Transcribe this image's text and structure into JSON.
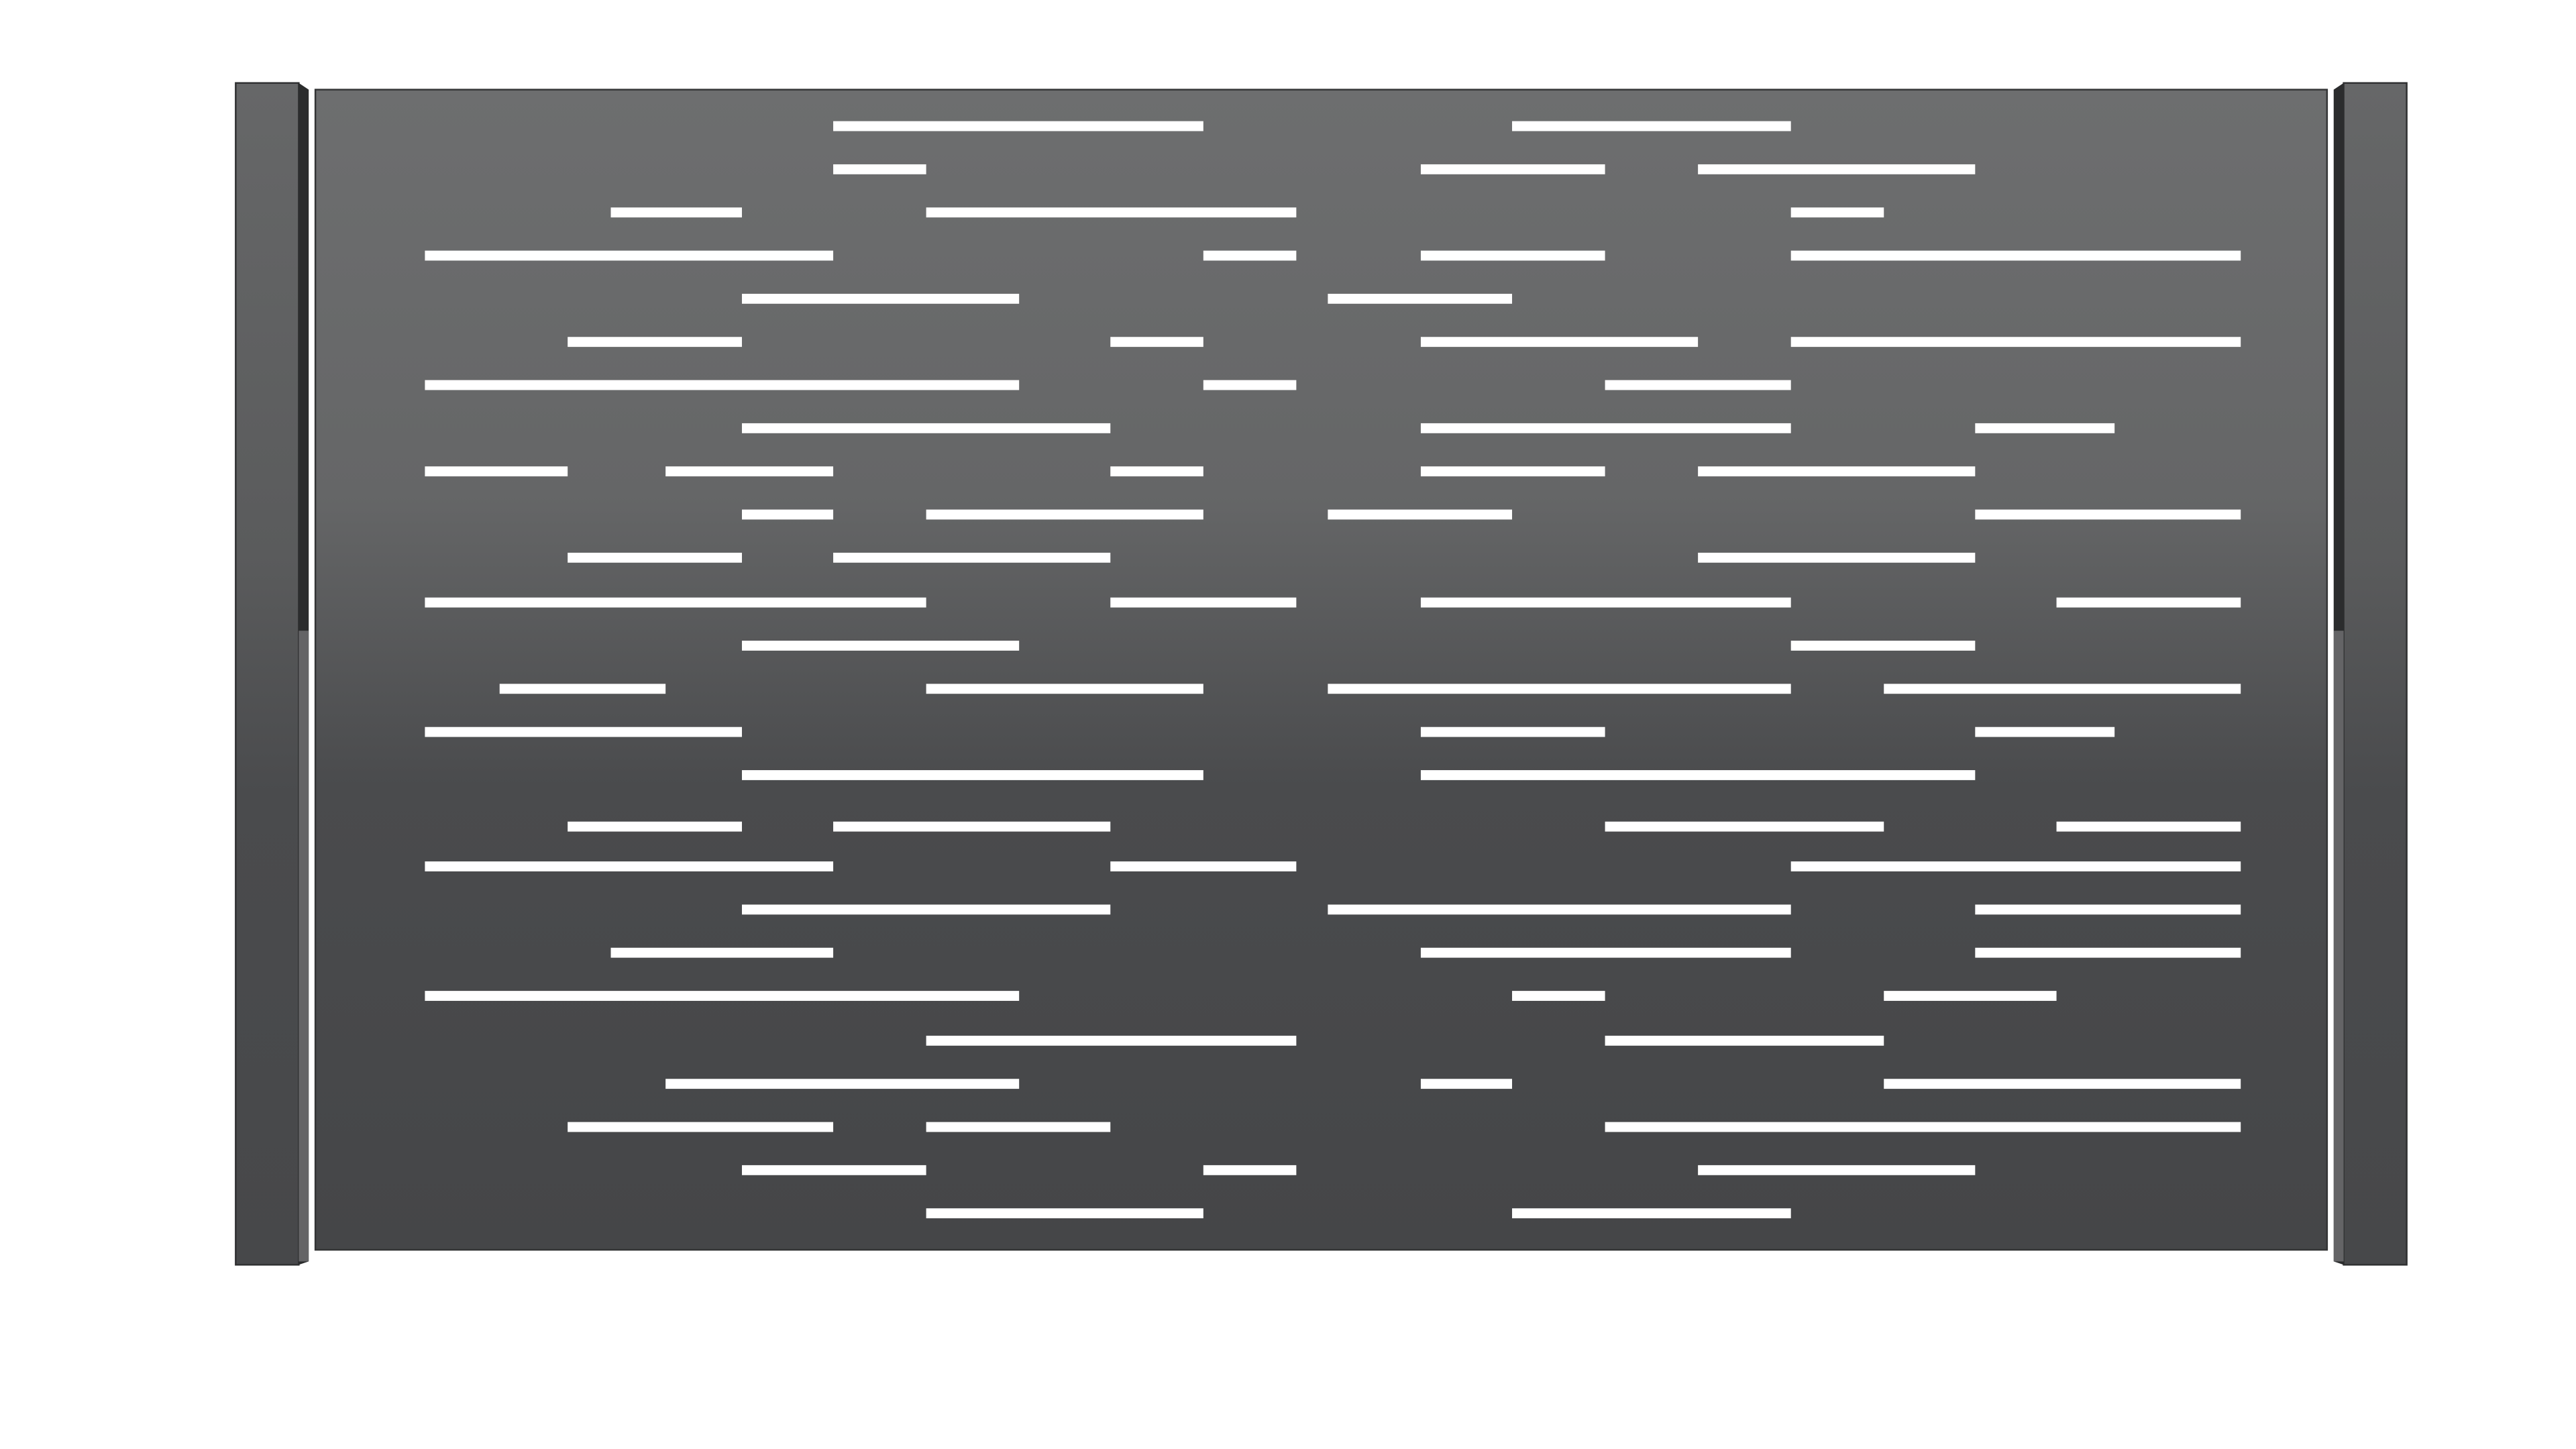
{
  "image": {
    "subject": "fence-panel",
    "colors": {
      "background": "#ffffff",
      "panel_top": "#6d6e6f",
      "panel_bottom": "#464749",
      "post": "#4a4b4d",
      "slot": "#ffffff"
    }
  }
}
